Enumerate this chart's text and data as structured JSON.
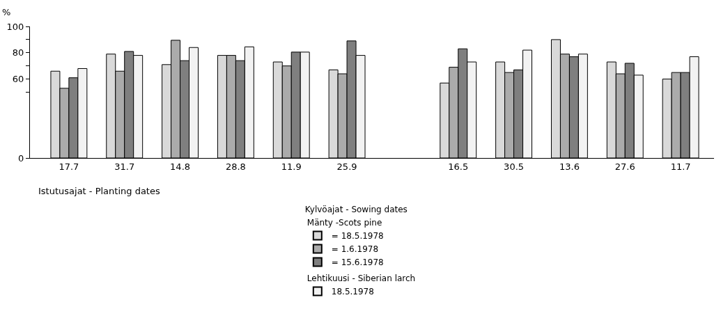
{
  "chart_data": {
    "type": "bar",
    "ylabel": "%",
    "xlabel": "Istutusajat - Planting dates",
    "legend_title": "Kylvöajat - Sowing dates",
    "categories": [
      "17.7",
      "31.7",
      "14.8",
      "28.8",
      "11.9",
      "25.9",
      null,
      "16.5",
      "30.5",
      "13.6",
      "27.6",
      "11.7"
    ],
    "series": [
      {
        "name": "= 18.5.1978",
        "color": "#d9d9d9",
        "values": [
          66,
          79,
          71,
          78,
          73,
          67,
          null,
          57,
          73,
          90,
          73,
          60
        ]
      },
      {
        "name": "= 1.6.1978",
        "color": "#ababab",
        "values": [
          53,
          66,
          89.5,
          78,
          70,
          64,
          null,
          69,
          65,
          79,
          64,
          65
        ]
      },
      {
        "name": "= 15.6.1978",
        "color": "#7f7f7f",
        "values": [
          61,
          81,
          74,
          74,
          80.5,
          89,
          null,
          83,
          67,
          77,
          72,
          65
        ]
      },
      {
        "name": "18.5.1978",
        "color": "#f2f2f2",
        "values": [
          68,
          78,
          84,
          84.5,
          80.5,
          78,
          null,
          73,
          82,
          79,
          63,
          77
        ]
      }
    ],
    "ylim": [
      0,
      100
    ],
    "yticks": [
      0,
      {
        "value": 50,
        "label": null
      },
      60,
      {
        "value": 70,
        "label": null
      },
      80,
      {
        "value": 90,
        "label": null
      },
      100
    ],
    "annotations": [
      "Mänty -Scots pine",
      "Lehtikuusi - Siberian larch"
    ],
    "legend": "bottom"
  }
}
